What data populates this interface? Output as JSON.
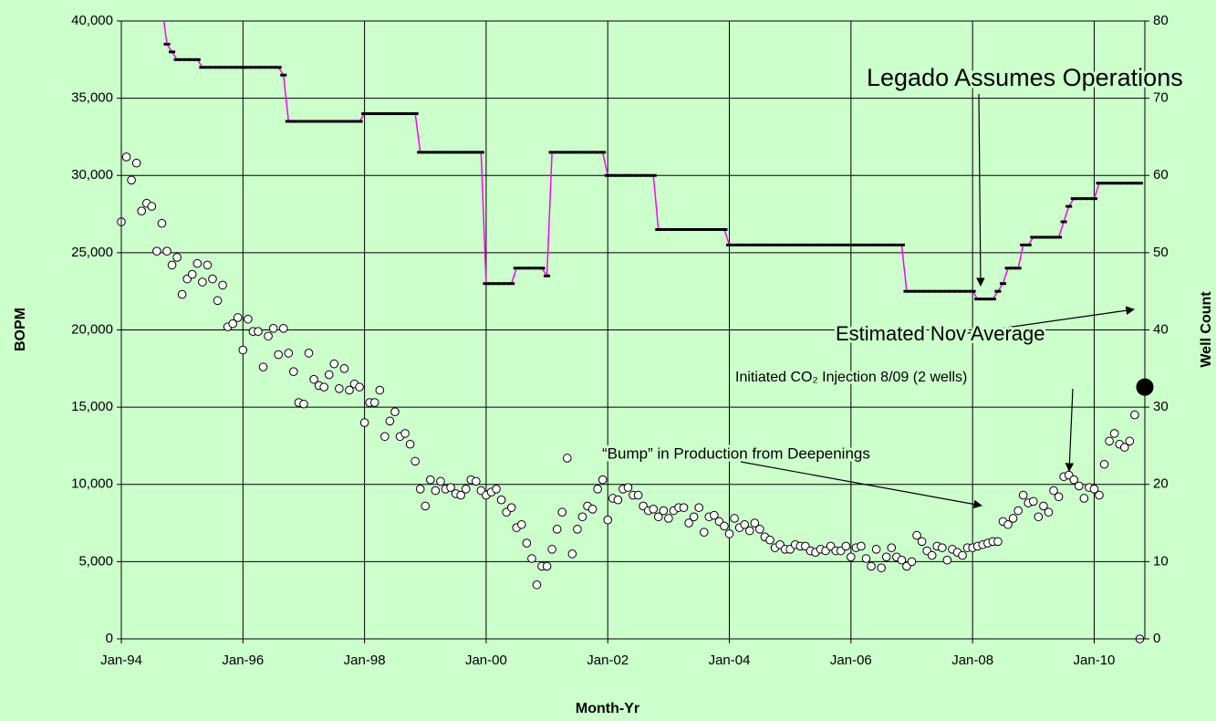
{
  "chart_data": {
    "type": "combo",
    "x_label": "Month-Yr",
    "y_label": "BOPM",
    "y2_label": "Well Count",
    "xlim": [
      "Jan-94",
      "Nov-10"
    ],
    "xticks": [
      "Jan-94",
      "Jan-96",
      "Jan-98",
      "Jan-00",
      "Jan-02",
      "Jan-04",
      "Jan-06",
      "Jan-08",
      "Jan-10"
    ],
    "ylim": [
      0,
      40000
    ],
    "yticks": [
      0,
      {
        "value": 5000,
        "label": "5,000"
      },
      {
        "value": 10000,
        "label": "10,000"
      },
      {
        "value": 15000,
        "label": "15,000"
      },
      {
        "value": 20000,
        "label": "20,000"
      },
      {
        "value": 25000,
        "label": "25,000"
      },
      {
        "value": 30000,
        "label": "30,000"
      },
      {
        "value": 35000,
        "label": "35,000"
      },
      {
        "value": 40000,
        "label": "40,000"
      }
    ],
    "y2lim": [
      0,
      80
    ],
    "y2ticks": [
      0,
      10,
      20,
      30,
      40,
      50,
      60,
      70,
      80
    ],
    "grid": true,
    "x": [
      "Jan-94",
      "Feb-94",
      "Mar-94",
      "Apr-94",
      "May-94",
      "Jun-94",
      "Jul-94",
      "Aug-94",
      "Sep-94",
      "Oct-94",
      "Nov-94",
      "Dec-94",
      "Jan-95",
      "Feb-95",
      "Mar-95",
      "Apr-95",
      "May-95",
      "Jun-95",
      "Jul-95",
      "Aug-95",
      "Sep-95",
      "Oct-95",
      "Nov-95",
      "Dec-95",
      "Jan-96",
      "Feb-96",
      "Mar-96",
      "Apr-96",
      "May-96",
      "Jun-96",
      "Jul-96",
      "Aug-96",
      "Sep-96",
      "Oct-96",
      "Nov-96",
      "Dec-96",
      "Jan-97",
      "Feb-97",
      "Mar-97",
      "Apr-97",
      "May-97",
      "Jun-97",
      "Jul-97",
      "Aug-97",
      "Sep-97",
      "Oct-97",
      "Nov-97",
      "Dec-97",
      "Jan-98",
      "Feb-98",
      "Mar-98",
      "Apr-98",
      "May-98",
      "Jun-98",
      "Jul-98",
      "Aug-98",
      "Sep-98",
      "Oct-98",
      "Nov-98",
      "Dec-98",
      "Jan-99",
      "Feb-99",
      "Mar-99",
      "Apr-99",
      "May-99",
      "Jun-99",
      "Jul-99",
      "Aug-99",
      "Sep-99",
      "Oct-99",
      "Nov-99",
      "Dec-99",
      "Jan-00",
      "Feb-00",
      "Mar-00",
      "Apr-00",
      "May-00",
      "Jun-00",
      "Jul-00",
      "Aug-00",
      "Sep-00",
      "Oct-00",
      "Nov-00",
      "Dec-00",
      "Jan-01",
      "Feb-01",
      "Mar-01",
      "Apr-01",
      "May-01",
      "Jun-01",
      "Jul-01",
      "Aug-01",
      "Sep-01",
      "Oct-01",
      "Nov-01",
      "Dec-01",
      "Jan-02",
      "Feb-02",
      "Mar-02",
      "Apr-02",
      "May-02",
      "Jun-02",
      "Jul-02",
      "Aug-02",
      "Sep-02",
      "Oct-02",
      "Nov-02",
      "Dec-02",
      "Jan-03",
      "Feb-03",
      "Mar-03",
      "Apr-03",
      "May-03",
      "Jun-03",
      "Jul-03",
      "Aug-03",
      "Sep-03",
      "Oct-03",
      "Nov-03",
      "Dec-03",
      "Jan-04",
      "Feb-04",
      "Mar-04",
      "Apr-04",
      "May-04",
      "Jun-04",
      "Jul-04",
      "Aug-04",
      "Sep-04",
      "Oct-04",
      "Nov-04",
      "Dec-04",
      "Jan-05",
      "Feb-05",
      "Mar-05",
      "Apr-05",
      "May-05",
      "Jun-05",
      "Jul-05",
      "Aug-05",
      "Sep-05",
      "Oct-05",
      "Nov-05",
      "Dec-05",
      "Jan-06",
      "Feb-06",
      "Mar-06",
      "Apr-06",
      "May-06",
      "Jun-06",
      "Jul-06",
      "Aug-06",
      "Sep-06",
      "Oct-06",
      "Nov-06",
      "Dec-06",
      "Jan-07",
      "Feb-07",
      "Mar-07",
      "Apr-07",
      "May-07",
      "Jun-07",
      "Jul-07",
      "Aug-07",
      "Sep-07",
      "Oct-07",
      "Nov-07",
      "Dec-07",
      "Jan-08",
      "Feb-08",
      "Mar-08",
      "Apr-08",
      "May-08",
      "Jun-08",
      "Jul-08",
      "Aug-08",
      "Sep-08",
      "Oct-08",
      "Nov-08",
      "Dec-08",
      "Jan-09",
      "Feb-09",
      "Mar-09",
      "Apr-09",
      "May-09",
      "Jun-09",
      "Jul-09",
      "Aug-09",
      "Sep-09",
      "Oct-09",
      "Nov-09",
      "Dec-09",
      "Jan-10",
      "Feb-10",
      "Mar-10",
      "Apr-10",
      "May-10",
      "Jun-10",
      "Jul-10",
      "Aug-10",
      "Sep-10",
      "Oct-10"
    ],
    "series": [
      {
        "type": "scatter",
        "color": "#ffffff",
        "edge_color": "#000000",
        "values": [
          27000,
          31200,
          29700,
          30800,
          27700,
          28200,
          28000,
          25100,
          26900,
          25100,
          24200,
          24700,
          22300,
          23300,
          23600,
          24300,
          23100,
          24200,
          23300,
          21900,
          22900,
          20200,
          20400,
          20800,
          18700,
          20700,
          19900,
          19900,
          17600,
          19600,
          20100,
          18400,
          20100,
          18500,
          17300,
          15300,
          15200,
          18500,
          16800,
          16400,
          16300,
          17100,
          17800,
          16200,
          17500,
          16100,
          16500,
          16300,
          14000,
          15300,
          15300,
          16100,
          13100,
          14100,
          14700,
          13100,
          13300,
          12600,
          11500,
          9700,
          8600,
          10300,
          9600,
          10200,
          9700,
          9800,
          9400,
          9300,
          9700,
          10300,
          10200,
          9600,
          9300,
          9500,
          9700,
          9000,
          8200,
          8500,
          7200,
          7400,
          6200,
          5200,
          3500,
          4700,
          4700,
          5800,
          7100,
          8200,
          11700,
          5500,
          7100,
          7900,
          8600,
          8400,
          9700,
          10300,
          7700,
          9100,
          9000,
          9700,
          9800,
          9300,
          9300,
          8600,
          8300,
          8400,
          7900,
          8300,
          7800,
          8300,
          8500,
          8500,
          7500,
          7900,
          8500,
          6900,
          7900,
          8000,
          7600,
          7300,
          6800,
          7800,
          7200,
          7400,
          7000,
          7500,
          7100,
          6600,
          6400,
          5900,
          6100,
          5800,
          5800,
          6100,
          6000,
          6000,
          5700,
          5600,
          5800,
          5700,
          6000,
          5700,
          5700,
          6000,
          5300,
          5900,
          6000,
          5200,
          4700,
          5800,
          4600,
          5300,
          5900,
          5300,
          5100,
          4700,
          5000,
          6700,
          6300,
          5700,
          5400,
          6000,
          5900,
          5100,
          5800,
          5600,
          5400,
          5900,
          5900,
          6000,
          6100,
          6200,
          6300,
          6300,
          7600,
          7400,
          7800,
          8300,
          9300,
          8800,
          8900,
          7900,
          8600,
          8200,
          9600,
          9200,
          10500,
          10600,
          10300,
          9900,
          9100,
          9800,
          9700,
          9300,
          11300,
          12800,
          13300,
          12600,
          12400,
          12800,
          14500,
          0
        ]
      },
      {
        "type": "line",
        "axis": "y2",
        "color": "#ff00ff",
        "marker_color": "#000000",
        "values": [
          null,
          null,
          null,
          null,
          null,
          null,
          null,
          null,
          82,
          77,
          76,
          75,
          75,
          75,
          75,
          75,
          74,
          74,
          74,
          74,
          74,
          74,
          74,
          74,
          74,
          74,
          74,
          74,
          74,
          74,
          74,
          74,
          73,
          67,
          67,
          67,
          67,
          67,
          67,
          67,
          67,
          67,
          67,
          67,
          67,
          67,
          67,
          67,
          68,
          68,
          68,
          68,
          68,
          68,
          68,
          68,
          68,
          68,
          68,
          63,
          63,
          63,
          63,
          63,
          63,
          63,
          63,
          63,
          63,
          63,
          63,
          63,
          46,
          46,
          46,
          46,
          46,
          46,
          48,
          48,
          48,
          48,
          48,
          48,
          47,
          63,
          63,
          63,
          63,
          63,
          63,
          63,
          63,
          63,
          63,
          63,
          60,
          60,
          60,
          60,
          60,
          60,
          60,
          60,
          60,
          60,
          53,
          53,
          53,
          53,
          53,
          53,
          53,
          53,
          53,
          53,
          53,
          53,
          53,
          53,
          51,
          51,
          51,
          51,
          51,
          51,
          51,
          51,
          51,
          51,
          51,
          51,
          51,
          51,
          51,
          51,
          51,
          51,
          51,
          51,
          51,
          51,
          51,
          51,
          51,
          51,
          51,
          51,
          51,
          51,
          51,
          51,
          51,
          51,
          51,
          45,
          45,
          45,
          45,
          45,
          45,
          45,
          45,
          45,
          45,
          45,
          45,
          45,
          45,
          44,
          44,
          44,
          44,
          45,
          46,
          48,
          48,
          48,
          51,
          51,
          52,
          52,
          52,
          52,
          52,
          52,
          54,
          56,
          57,
          57,
          57,
          57,
          57,
          59,
          59,
          59,
          59,
          59,
          59,
          59,
          59,
          59
        ]
      }
    ],
    "highlight": {
      "x": "Nov-10",
      "value": 16300,
      "color": "#000000"
    },
    "annotations": [
      {
        "text": "Legado Assumes Operations"
      },
      {
        "text": "Estimated Nov Average"
      },
      {
        "text": "Initiated CO₂ Injection 8/09 (2 wells)"
      },
      {
        "text": "“Bump” in Production from Deepenings"
      }
    ]
  }
}
